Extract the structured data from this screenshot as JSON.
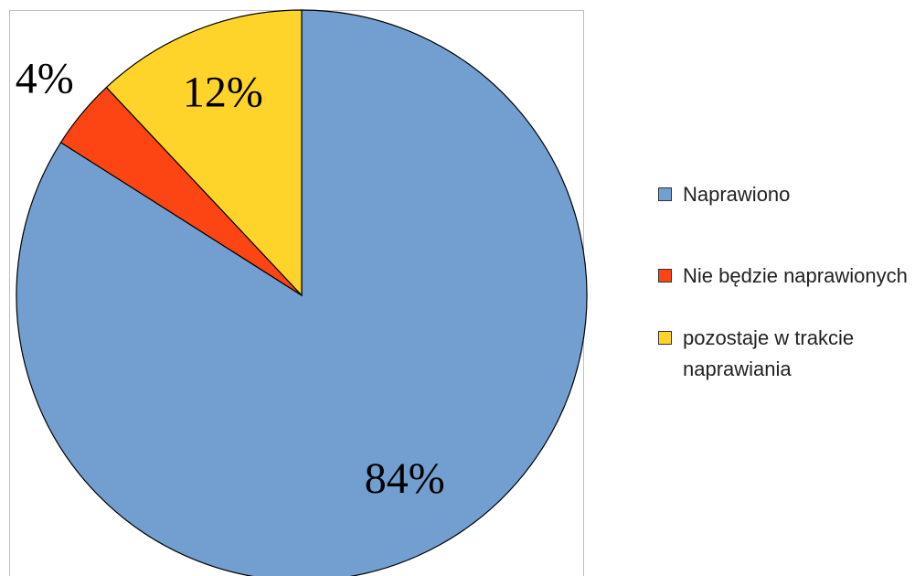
{
  "chart_data": {
    "type": "pie",
    "categories": [
      "Naprawiono",
      "Nie będzie naprawionych",
      "pozostaje w trakcie naprawiania"
    ],
    "values": [
      84,
      4,
      12
    ],
    "value_labels": [
      "84%",
      "4%",
      "12%"
    ],
    "colors": [
      "#739fd0",
      "#fc4512",
      "#ffd42a"
    ],
    "legend": "right"
  }
}
